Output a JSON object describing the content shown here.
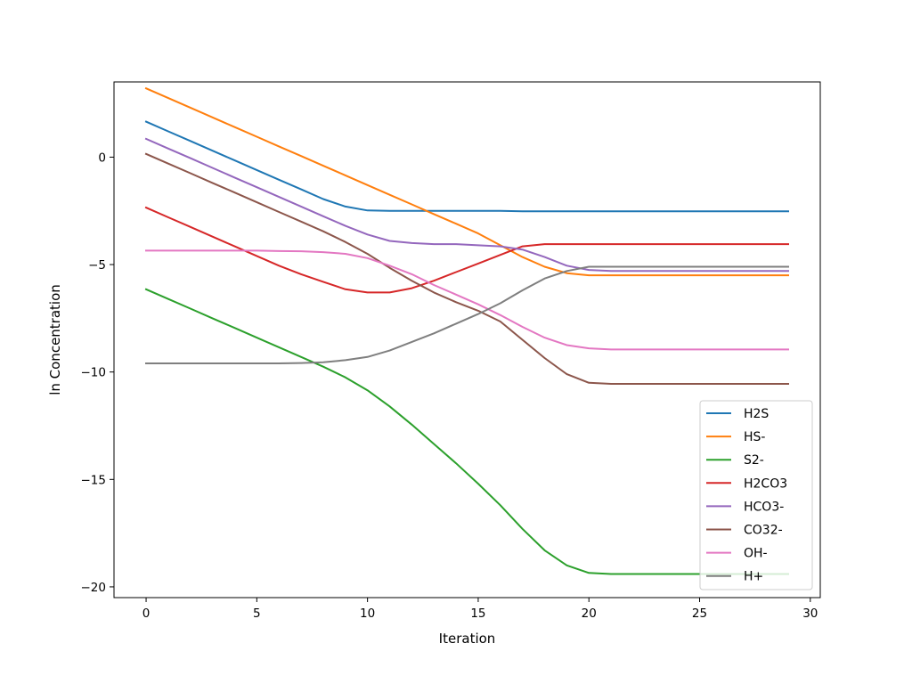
{
  "chart_data": {
    "type": "line",
    "title": "",
    "xlabel": "Iteration",
    "ylabel": "ln Concentration",
    "xlim": [
      -1.45,
      30.45
    ],
    "ylim": [
      -20.5,
      3.5
    ],
    "xticks": [
      0,
      5,
      10,
      15,
      20,
      25,
      30
    ],
    "yticks": [
      0,
      -5,
      -10,
      -15,
      -20
    ],
    "ytick_labels": [
      "0",
      "−5",
      "−10",
      "−15",
      "−20"
    ],
    "grid": false,
    "legend_position": "lower-right",
    "x": [
      0,
      1,
      2,
      3,
      4,
      5,
      6,
      7,
      8,
      9,
      10,
      11,
      12,
      13,
      14,
      15,
      16,
      17,
      18,
      19,
      20,
      21,
      22,
      23,
      24,
      25,
      26,
      27,
      28,
      29
    ],
    "series": [
      {
        "name": "H2S",
        "color": "#1f77b4",
        "values": [
          1.65,
          1.2,
          0.75,
          0.3,
          -0.15,
          -0.6,
          -1.05,
          -1.5,
          -1.95,
          -2.3,
          -2.48,
          -2.5,
          -2.5,
          -2.5,
          -2.5,
          -2.5,
          -2.5,
          -2.52,
          -2.52,
          -2.52,
          -2.52,
          -2.52,
          -2.52,
          -2.52,
          -2.52,
          -2.52,
          -2.52,
          -2.52,
          -2.52,
          -2.52
        ]
      },
      {
        "name": "HS-",
        "color": "#ff7f0e",
        "values": [
          3.2,
          2.75,
          2.3,
          1.85,
          1.4,
          0.95,
          0.5,
          0.05,
          -0.4,
          -0.85,
          -1.3,
          -1.75,
          -2.2,
          -2.65,
          -3.1,
          -3.55,
          -4.1,
          -4.65,
          -5.1,
          -5.4,
          -5.5,
          -5.5,
          -5.5,
          -5.5,
          -5.5,
          -5.5,
          -5.5,
          -5.5,
          -5.5,
          -5.5
        ]
      },
      {
        "name": "S2-",
        "color": "#2ca02c",
        "values": [
          -6.15,
          -6.6,
          -7.05,
          -7.5,
          -7.95,
          -8.4,
          -8.85,
          -9.3,
          -9.75,
          -10.25,
          -10.85,
          -11.6,
          -12.45,
          -13.35,
          -14.25,
          -15.2,
          -16.2,
          -17.3,
          -18.3,
          -19.0,
          -19.35,
          -19.4,
          -19.4,
          -19.4,
          -19.4,
          -19.4,
          -19.4,
          -19.4,
          -19.4,
          -19.4
        ]
      },
      {
        "name": "H2CO3",
        "color": "#d62728",
        "values": [
          -2.35,
          -2.8,
          -3.25,
          -3.7,
          -4.15,
          -4.6,
          -5.05,
          -5.45,
          -5.8,
          -6.15,
          -6.3,
          -6.3,
          -6.1,
          -5.75,
          -5.35,
          -4.95,
          -4.55,
          -4.15,
          -4.05,
          -4.05,
          -4.05,
          -4.05,
          -4.05,
          -4.05,
          -4.05,
          -4.05,
          -4.05,
          -4.05,
          -4.05,
          -4.05
        ]
      },
      {
        "name": "HCO3-",
        "color": "#9467bd",
        "values": [
          0.85,
          0.4,
          -0.05,
          -0.5,
          -0.95,
          -1.4,
          -1.85,
          -2.3,
          -2.75,
          -3.2,
          -3.6,
          -3.9,
          -4.0,
          -4.05,
          -4.05,
          -4.1,
          -4.15,
          -4.3,
          -4.65,
          -5.05,
          -5.25,
          -5.3,
          -5.3,
          -5.3,
          -5.3,
          -5.3,
          -5.3,
          -5.3,
          -5.3,
          -5.3
        ]
      },
      {
        "name": "CO32-",
        "color": "#8c564b",
        "values": [
          0.15,
          -0.3,
          -0.75,
          -1.2,
          -1.65,
          -2.1,
          -2.55,
          -3.0,
          -3.45,
          -3.95,
          -4.5,
          -5.15,
          -5.75,
          -6.3,
          -6.75,
          -7.15,
          -7.65,
          -8.5,
          -9.35,
          -10.1,
          -10.5,
          -10.55,
          -10.55,
          -10.55,
          -10.55,
          -10.55,
          -10.55,
          -10.55,
          -10.55,
          -10.55
        ]
      },
      {
        "name": "OH-",
        "color": "#e377c2",
        "values": [
          -4.35,
          -4.35,
          -4.35,
          -4.35,
          -4.35,
          -4.35,
          -4.37,
          -4.38,
          -4.42,
          -4.5,
          -4.7,
          -5.05,
          -5.45,
          -5.95,
          -6.4,
          -6.85,
          -7.35,
          -7.9,
          -8.4,
          -8.75,
          -8.9,
          -8.95,
          -8.95,
          -8.95,
          -8.95,
          -8.95,
          -8.95,
          -8.95,
          -8.95,
          -8.95
        ]
      },
      {
        "name": "H+",
        "color": "#7f7f7f",
        "values": [
          -9.6,
          -9.6,
          -9.6,
          -9.6,
          -9.6,
          -9.6,
          -9.6,
          -9.58,
          -9.55,
          -9.45,
          -9.3,
          -9.0,
          -8.6,
          -8.2,
          -7.75,
          -7.3,
          -6.8,
          -6.2,
          -5.65,
          -5.3,
          -5.1,
          -5.1,
          -5.1,
          -5.1,
          -5.1,
          -5.1,
          -5.1,
          -5.1,
          -5.1,
          -5.1
        ]
      }
    ]
  }
}
